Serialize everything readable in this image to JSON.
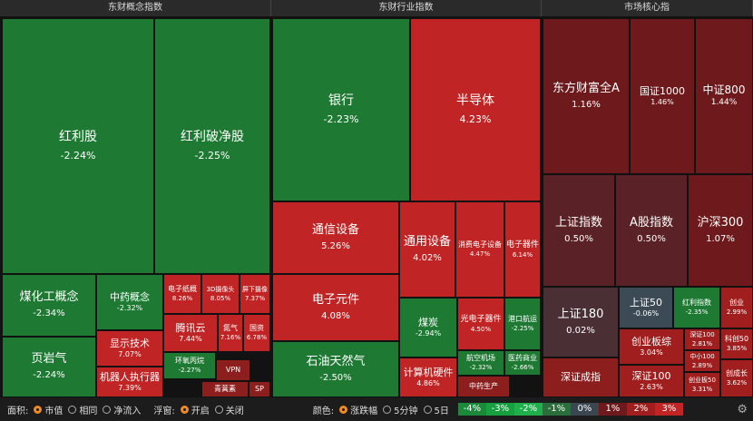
{
  "headers": [
    "东财概念指数",
    "东财行业指数",
    "市场核心指"
  ],
  "panels": [
    {
      "tiles": [
        {
          "name": "红利股",
          "change": "-2.24%"
        },
        {
          "name": "红利破净股",
          "change": "-2.25%"
        },
        {
          "name": "煤化工概念",
          "change": "-2.34%"
        },
        {
          "name": "页岩气",
          "change": "-2.24%"
        },
        {
          "name": "中药概念",
          "change": "-2.32%"
        },
        {
          "name": "显示技术",
          "change": "7.07%"
        },
        {
          "name": "机器人执行器",
          "change": "7.39%"
        },
        {
          "name": "电子纸概",
          "change": "8.26%"
        },
        {
          "name": "3D摄像头",
          "change": "8.05%"
        },
        {
          "name": "屏下摄像",
          "change": "7.37%"
        },
        {
          "name": "腾讯云",
          "change": "7.44%"
        },
        {
          "name": "氮气",
          "change": "7.16%"
        },
        {
          "name": "国资",
          "change": "6.78%"
        },
        {
          "name": "环氧丙烷",
          "change": "-2.27%"
        },
        {
          "name": "VPN"
        },
        {
          "name": "青蒿素"
        },
        {
          "name": "SP"
        }
      ]
    },
    {
      "tiles": [
        {
          "name": "银行",
          "change": "-2.23%"
        },
        {
          "name": "半导体",
          "change": "4.23%"
        },
        {
          "name": "通信设备",
          "change": "5.26%"
        },
        {
          "name": "通用设备",
          "change": "4.02%"
        },
        {
          "name": "消费电子设备",
          "change": "4.47%"
        },
        {
          "name": "电子器件",
          "change": "6.14%"
        },
        {
          "name": "电子元件",
          "change": "4.08%"
        },
        {
          "name": "石油天然气",
          "change": "-2.50%"
        },
        {
          "name": "煤炭",
          "change": "-2.94%"
        },
        {
          "name": "计算机硬件",
          "change": "4.86%"
        },
        {
          "name": "光电子器件",
          "change": "4.50%"
        },
        {
          "name": "港口航运",
          "change": "-2.25%"
        },
        {
          "name": "航空机场",
          "change": "-2.32%"
        },
        {
          "name": "医药商业",
          "change": "-2.66%"
        },
        {
          "name": "中药生产"
        }
      ]
    },
    {
      "tiles": [
        {
          "name": "东方财富全A",
          "change": "1.16%"
        },
        {
          "name": "国证1000",
          "change": "1.46%"
        },
        {
          "name": "中证800",
          "change": "1.44%"
        },
        {
          "name": "上证指数",
          "change": "0.50%"
        },
        {
          "name": "A股指数",
          "change": "0.50%"
        },
        {
          "name": "沪深300",
          "change": "1.07%"
        },
        {
          "name": "上证180",
          "change": "0.02%"
        },
        {
          "name": "深证成指"
        },
        {
          "name": "上证50",
          "change": "-0.06%"
        },
        {
          "name": "红利指数",
          "change": "-2.35%"
        },
        {
          "name": "创业",
          "change": "2.99%"
        },
        {
          "name": "创业板综",
          "change": "3.04%"
        },
        {
          "name": "深证100",
          "change": "2.63%"
        },
        {
          "name": "深证100",
          "change": "2.81%"
        },
        {
          "name": "中小100",
          "change": "2.89%"
        },
        {
          "name": "创业板50",
          "change": "3.31%"
        },
        {
          "name": "科创50",
          "change": "3.85%"
        },
        {
          "name": "创成长",
          "change": "3.62%"
        }
      ]
    }
  ],
  "controls": [
    {
      "label": "面积:",
      "options": [
        "市值",
        "相同",
        "净流入"
      ]
    },
    {
      "label": "浮窗:",
      "options": [
        "开启",
        "关闭"
      ]
    },
    {
      "label": "颜色:",
      "options": [
        "涨跌幅",
        "5分钟",
        "5日"
      ]
    }
  ],
  "legend": [
    "-4%",
    "-3%",
    "-2%",
    "-1%",
    "0%",
    "1%",
    "2%",
    "3%"
  ]
}
